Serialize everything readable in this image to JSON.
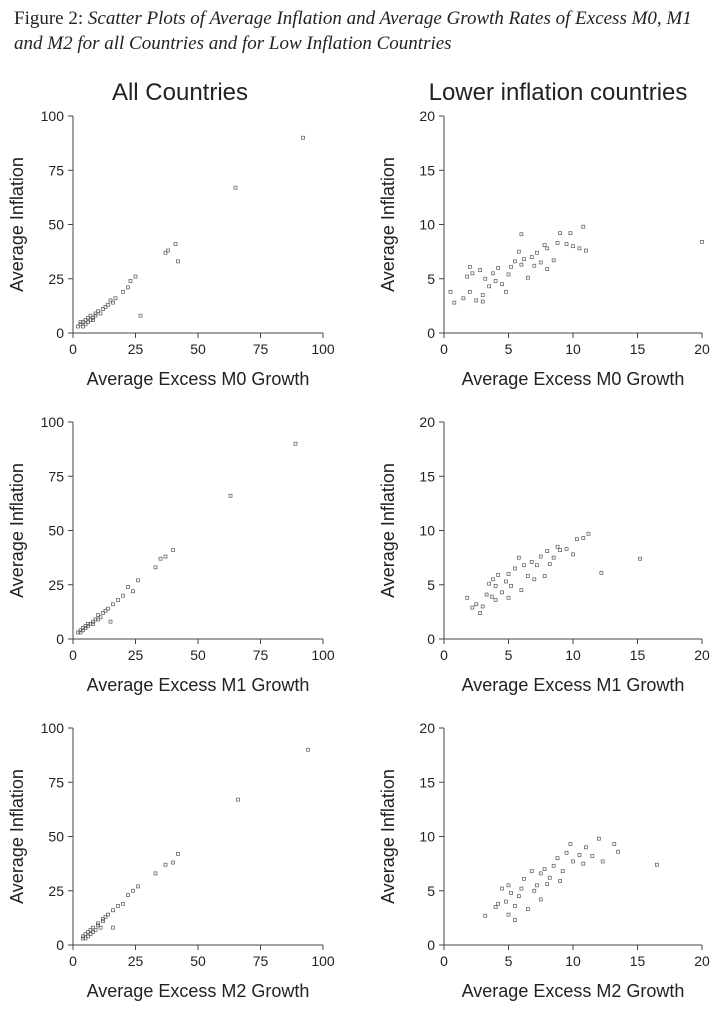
{
  "caption": {
    "label": "Figure 2:",
    "text": "Scatter Plots of Average Inflation and Average Growth Rates of Excess M0, M1 and M2 for all Countries and for Low Inflation Countries"
  },
  "columns": [
    {
      "title": "All Countries"
    },
    {
      "title": "Lower inflation countries"
    }
  ],
  "chart_data": [
    {
      "type": "scatter",
      "title": "All Countries",
      "xlabel": "Average Excess M0 Growth",
      "ylabel": "Average Inflation",
      "xlim": [
        0,
        100
      ],
      "ylim": [
        0,
        100
      ],
      "xticks": [
        0,
        25,
        50,
        75,
        100
      ],
      "yticks": [
        0,
        25,
        50,
        75,
        100
      ],
      "points": [
        [
          2,
          3
        ],
        [
          3,
          4
        ],
        [
          3,
          5
        ],
        [
          4,
          3
        ],
        [
          4,
          5
        ],
        [
          5,
          4
        ],
        [
          5,
          6
        ],
        [
          6,
          5
        ],
        [
          6,
          7
        ],
        [
          7,
          6
        ],
        [
          7,
          8
        ],
        [
          8,
          6
        ],
        [
          8,
          7
        ],
        [
          9,
          8
        ],
        [
          9,
          9
        ],
        [
          10,
          10
        ],
        [
          11,
          9
        ],
        [
          12,
          11
        ],
        [
          13,
          12
        ],
        [
          14,
          13
        ],
        [
          15,
          15
        ],
        [
          16,
          14
        ],
        [
          17,
          16
        ],
        [
          20,
          19
        ],
        [
          22,
          21
        ],
        [
          23,
          24
        ],
        [
          25,
          26
        ],
        [
          27,
          8
        ],
        [
          37,
          37
        ],
        [
          38,
          38
        ],
        [
          41,
          41
        ],
        [
          42,
          33
        ],
        [
          65,
          67
        ],
        [
          92,
          90
        ]
      ]
    },
    {
      "type": "scatter",
      "title": "Lower inflation countries",
      "xlabel": "Average Excess M0 Growth",
      "ylabel": "Average Inflation",
      "xlim": [
        0,
        20
      ],
      "ylim": [
        0,
        20
      ],
      "xticks": [
        0,
        5,
        10,
        15,
        20
      ],
      "yticks": [
        0,
        5,
        10,
        15,
        20
      ],
      "points": [
        [
          0.5,
          3.8
        ],
        [
          0.8,
          2.8
        ],
        [
          1.5,
          3.2
        ],
        [
          1.8,
          5.2
        ],
        [
          2,
          3.8
        ],
        [
          2,
          6.1
        ],
        [
          2.2,
          5.5
        ],
        [
          2.5,
          3.0
        ],
        [
          2.8,
          5.8
        ],
        [
          3,
          2.9
        ],
        [
          3,
          3.5
        ],
        [
          3.2,
          5.0
        ],
        [
          3.5,
          4.3
        ],
        [
          3.8,
          5.5
        ],
        [
          4,
          4.8
        ],
        [
          4.2,
          6.0
        ],
        [
          4.5,
          4.5
        ],
        [
          4.8,
          3.8
        ],
        [
          5,
          5.4
        ],
        [
          5.2,
          6.1
        ],
        [
          5.5,
          6.6
        ],
        [
          5.8,
          7.5
        ],
        [
          6,
          6.3
        ],
        [
          6,
          9.1
        ],
        [
          6.2,
          6.8
        ],
        [
          6.5,
          5.1
        ],
        [
          6.8,
          7.0
        ],
        [
          7,
          6.2
        ],
        [
          7.2,
          7.4
        ],
        [
          7.5,
          6.5
        ],
        [
          7.8,
          8.1
        ],
        [
          8,
          5.9
        ],
        [
          8,
          7.8
        ],
        [
          8.5,
          6.7
        ],
        [
          8.8,
          8.3
        ],
        [
          9,
          9.2
        ],
        [
          9.5,
          8.2
        ],
        [
          9.8,
          9.2
        ],
        [
          10,
          8.0
        ],
        [
          10.5,
          7.8
        ],
        [
          10.8,
          9.8
        ],
        [
          11,
          7.6
        ],
        [
          20,
          8.4
        ]
      ]
    },
    {
      "type": "scatter",
      "title": "All Countries",
      "xlabel": "Average Excess M1 Growth",
      "ylabel": "Average Inflation",
      "xlim": [
        0,
        100
      ],
      "ylim": [
        0,
        100
      ],
      "xticks": [
        0,
        25,
        50,
        75,
        100
      ],
      "yticks": [
        0,
        25,
        50,
        75,
        100
      ],
      "points": [
        [
          2,
          3
        ],
        [
          3,
          3
        ],
        [
          3,
          4
        ],
        [
          4,
          4
        ],
        [
          4,
          5
        ],
        [
          5,
          5
        ],
        [
          5,
          6
        ],
        [
          6,
          6
        ],
        [
          6,
          7
        ],
        [
          7,
          7
        ],
        [
          8,
          7
        ],
        [
          8,
          8
        ],
        [
          9,
          9
        ],
        [
          10,
          9
        ],
        [
          10,
          11
        ],
        [
          11,
          10
        ],
        [
          12,
          12
        ],
        [
          13,
          13
        ],
        [
          14,
          14
        ],
        [
          15,
          8
        ],
        [
          16,
          16
        ],
        [
          18,
          18
        ],
        [
          20,
          20
        ],
        [
          22,
          24
        ],
        [
          24,
          22
        ],
        [
          26,
          27
        ],
        [
          33,
          33
        ],
        [
          35,
          37
        ],
        [
          37,
          38
        ],
        [
          40,
          41
        ],
        [
          63,
          66
        ],
        [
          89,
          90
        ]
      ]
    },
    {
      "type": "scatter",
      "title": "Lower inflation countries",
      "xlabel": "Average Excess M1 Growth",
      "ylabel": "Average Inflation",
      "xlim": [
        0,
        20
      ],
      "ylim": [
        0,
        20
      ],
      "xticks": [
        0,
        5,
        10,
        15,
        20
      ],
      "yticks": [
        0,
        5,
        10,
        15,
        20
      ],
      "points": [
        [
          1.8,
          3.8
        ],
        [
          2.2,
          2.9
        ],
        [
          2.5,
          3.2
        ],
        [
          2.8,
          2.4
        ],
        [
          3,
          3.0
        ],
        [
          3.3,
          4.1
        ],
        [
          3.5,
          5.1
        ],
        [
          3.7,
          3.9
        ],
        [
          3.8,
          5.5
        ],
        [
          4,
          3.6
        ],
        [
          4,
          4.9
        ],
        [
          4.2,
          5.9
        ],
        [
          4.5,
          4.3
        ],
        [
          4.8,
          5.3
        ],
        [
          5,
          3.8
        ],
        [
          5,
          6.0
        ],
        [
          5.2,
          4.9
        ],
        [
          5.5,
          6.5
        ],
        [
          5.8,
          7.5
        ],
        [
          6,
          4.5
        ],
        [
          6.2,
          6.8
        ],
        [
          6.5,
          5.8
        ],
        [
          6.8,
          7.1
        ],
        [
          7,
          5.5
        ],
        [
          7.2,
          6.8
        ],
        [
          7.5,
          7.6
        ],
        [
          7.8,
          5.8
        ],
        [
          8,
          8.1
        ],
        [
          8.2,
          6.9
        ],
        [
          8.5,
          7.5
        ],
        [
          8.8,
          8.5
        ],
        [
          9,
          8.2
        ],
        [
          9.5,
          8.3
        ],
        [
          10,
          7.8
        ],
        [
          10.3,
          9.2
        ],
        [
          10.8,
          9.3
        ],
        [
          11.2,
          9.7
        ],
        [
          12.2,
          6.1
        ],
        [
          15.2,
          7.4
        ]
      ]
    },
    {
      "type": "scatter",
      "title": "All Countries",
      "xlabel": "Average Excess M2 Growth",
      "ylabel": "Average Inflation",
      "xlim": [
        0,
        100
      ],
      "ylim": [
        0,
        100
      ],
      "xticks": [
        0,
        25,
        50,
        75,
        100
      ],
      "yticks": [
        0,
        25,
        50,
        75,
        100
      ],
      "points": [
        [
          4,
          3
        ],
        [
          4,
          4
        ],
        [
          5,
          3
        ],
        [
          5,
          5
        ],
        [
          6,
          4
        ],
        [
          6,
          6
        ],
        [
          7,
          5
        ],
        [
          7,
          7
        ],
        [
          8,
          6
        ],
        [
          8,
          8
        ],
        [
          9,
          7
        ],
        [
          10,
          9
        ],
        [
          10,
          10
        ],
        [
          11,
          8
        ],
        [
          12,
          11
        ],
        [
          12,
          12
        ],
        [
          13,
          13
        ],
        [
          14,
          14
        ],
        [
          16,
          8
        ],
        [
          16,
          16
        ],
        [
          18,
          18
        ],
        [
          20,
          19
        ],
        [
          22,
          23
        ],
        [
          24,
          25
        ],
        [
          26,
          27
        ],
        [
          33,
          33
        ],
        [
          37,
          37
        ],
        [
          40,
          38
        ],
        [
          42,
          42
        ],
        [
          66,
          67
        ],
        [
          94,
          90
        ]
      ]
    },
    {
      "type": "scatter",
      "title": "Lower inflation countries",
      "xlabel": "Average Excess M2 Growth",
      "ylabel": "Average Inflation",
      "xlim": [
        0,
        20
      ],
      "ylim": [
        0,
        20
      ],
      "xticks": [
        0,
        5,
        10,
        15,
        20
      ],
      "yticks": [
        0,
        5,
        10,
        15,
        20
      ],
      "points": [
        [
          3.2,
          2.7
        ],
        [
          4,
          3.5
        ],
        [
          4.2,
          3.8
        ],
        [
          4.5,
          5.2
        ],
        [
          4.8,
          4.0
        ],
        [
          5,
          2.8
        ],
        [
          5,
          5.5
        ],
        [
          5.2,
          4.8
        ],
        [
          5.5,
          3.6
        ],
        [
          5.5,
          2.3
        ],
        [
          5.8,
          4.5
        ],
        [
          6,
          5.2
        ],
        [
          6.2,
          6.1
        ],
        [
          6.5,
          3.3
        ],
        [
          6.8,
          6.8
        ],
        [
          7,
          5.0
        ],
        [
          7.2,
          5.5
        ],
        [
          7.5,
          6.6
        ],
        [
          7.5,
          4.2
        ],
        [
          7.8,
          7.0
        ],
        [
          8,
          5.6
        ],
        [
          8.2,
          6.2
        ],
        [
          8.5,
          7.3
        ],
        [
          8.8,
          8.0
        ],
        [
          9,
          5.9
        ],
        [
          9.2,
          6.8
        ],
        [
          9.5,
          8.5
        ],
        [
          9.8,
          9.3
        ],
        [
          10,
          7.7
        ],
        [
          10.5,
          8.3
        ],
        [
          10.8,
          7.5
        ],
        [
          11,
          9.0
        ],
        [
          11.5,
          8.2
        ],
        [
          12,
          9.8
        ],
        [
          12.3,
          7.7
        ],
        [
          13.2,
          9.3
        ],
        [
          13.5,
          8.6
        ],
        [
          16.5,
          7.4
        ]
      ]
    }
  ]
}
